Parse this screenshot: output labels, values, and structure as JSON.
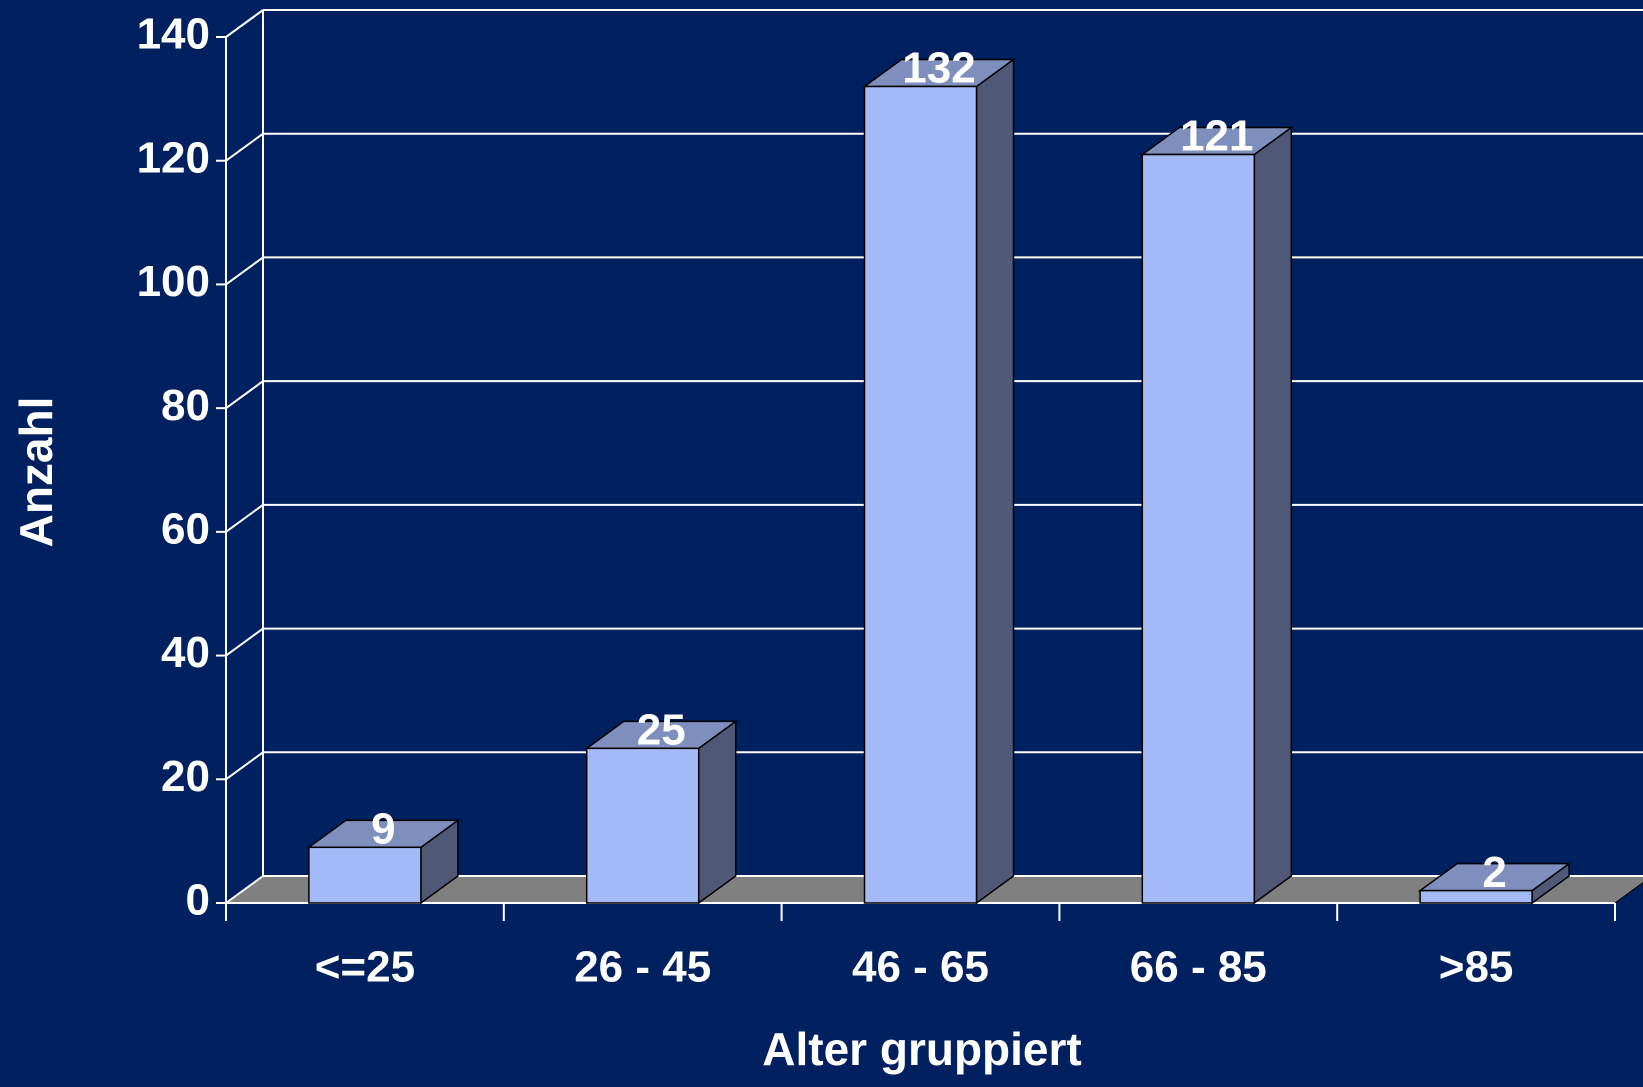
{
  "chart_data": {
    "type": "bar3d",
    "categories": [
      "<=25",
      "26 - 45",
      "46 - 65",
      "66 - 85",
      ">85"
    ],
    "values": [
      9,
      25,
      132,
      121,
      2
    ],
    "color": "#a4baf7",
    "x_label": "Alter gruppiert",
    "y_label": "Anzahl",
    "ylim": [
      0,
      140
    ],
    "yticks": [
      0,
      20,
      40,
      60,
      80,
      100,
      120,
      140
    ],
    "grid": true
  }
}
